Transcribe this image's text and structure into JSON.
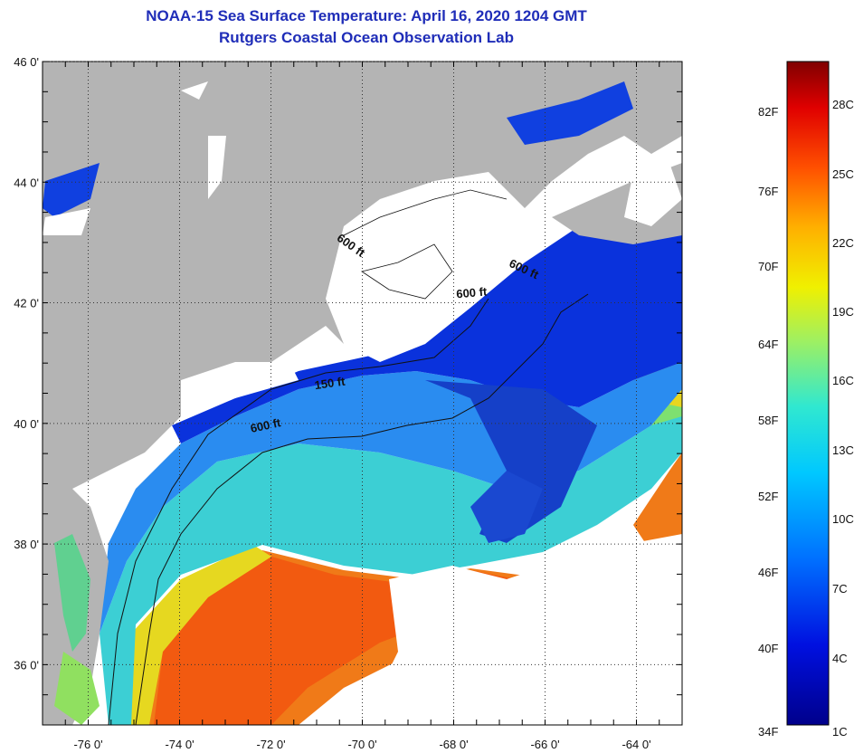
{
  "header": {
    "title": "NOAA-15 Sea Surface Temperature:  April 16, 2020 1204 GMT",
    "subtitle": "Rutgers Coastal Ocean Observation Lab"
  },
  "map": {
    "lon_range": [
      -77,
      -63
    ],
    "lat_range": [
      35,
      46
    ],
    "lon_ticks": [
      {
        "value": -76,
        "label": "-76 0'"
      },
      {
        "value": -74,
        "label": "-74 0'"
      },
      {
        "value": -72,
        "label": "-72 0'"
      },
      {
        "value": -70,
        "label": "-70 0'"
      },
      {
        "value": -68,
        "label": "-68 0'"
      },
      {
        "value": -66,
        "label": "-66 0'"
      },
      {
        "value": -64,
        "label": "-64 0'"
      }
    ],
    "lat_ticks": [
      {
        "value": 46,
        "label": "46 0'"
      },
      {
        "value": 44,
        "label": "44 0'"
      },
      {
        "value": 42,
        "label": "42 0'"
      },
      {
        "value": 40,
        "label": "40 0'"
      },
      {
        "value": 38,
        "label": "38 0'"
      },
      {
        "value": 36,
        "label": "36 0'"
      }
    ],
    "contour_labels": [
      {
        "text": "600 ft",
        "lon": -70.3,
        "lat": 42.9,
        "rotate": 35
      },
      {
        "text": "600 ft",
        "lon": -66.5,
        "lat": 42.5,
        "rotate": 25
      },
      {
        "text": "600 ft",
        "lon": -67.6,
        "lat": 42.1,
        "rotate": -5
      },
      {
        "text": "150 ft",
        "lon": -70.7,
        "lat": 40.6,
        "rotate": -8
      },
      {
        "text": "600 ft",
        "lon": -72.1,
        "lat": 39.9,
        "rotate": -12
      }
    ],
    "colors": {
      "land": "#b4b4b4",
      "cloud": "#ffffff",
      "cold": "#0a2fd8",
      "cool": "#1e8cf0",
      "mid": "#3ad8d0",
      "warm": "#e8e020",
      "hot": "#f26a10"
    }
  },
  "colorbar": {
    "f_labels": [
      {
        "value": "82F",
        "t": 0.077
      },
      {
        "value": "76F",
        "t": 0.196
      },
      {
        "value": "70F",
        "t": 0.31
      },
      {
        "value": "64F",
        "t": 0.427
      },
      {
        "value": "58F",
        "t": 0.542
      },
      {
        "value": "52F",
        "t": 0.656
      },
      {
        "value": "46F",
        "t": 0.771
      },
      {
        "value": "40F",
        "t": 0.885
      },
      {
        "value": "34F",
        "t": 1.0
      }
    ],
    "c_labels": [
      {
        "value": "28C",
        "t": 0.066
      },
      {
        "value": "25C",
        "t": 0.17
      },
      {
        "value": "22C",
        "t": 0.274
      },
      {
        "value": "19C",
        "t": 0.378
      },
      {
        "value": "16C",
        "t": 0.482
      },
      {
        "value": "13C",
        "t": 0.586
      },
      {
        "value": "10C",
        "t": 0.69
      },
      {
        "value": "7C",
        "t": 0.795
      },
      {
        "value": "4C",
        "t": 0.9
      },
      {
        "value": "1C",
        "t": 1.0
      }
    ]
  }
}
